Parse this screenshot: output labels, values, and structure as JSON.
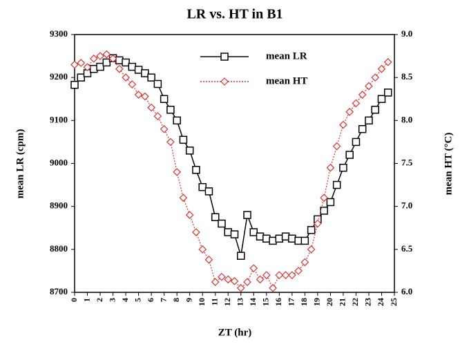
{
  "chart_data": {
    "type": "line",
    "title": "LR vs. HT in B1",
    "x_label": "ZT (hr)",
    "y_label": "mean LR (cpm)",
    "y2_label": "mean HT (°C)",
    "xlim": [
      0,
      25
    ],
    "xticks": [
      0,
      1,
      2,
      3,
      4,
      5,
      6,
      7,
      8,
      9,
      10,
      11,
      12,
      13,
      14,
      15,
      16,
      17,
      18,
      19,
      20,
      21,
      22,
      23,
      24,
      25
    ],
    "ylim": [
      8700,
      9300
    ],
    "yticks": [
      8700,
      8800,
      8900,
      9000,
      9100,
      9200,
      9300
    ],
    "y2lim": [
      6,
      9
    ],
    "y2ticks": [
      {
        "value": 6,
        "label": "6.0"
      },
      6.5,
      {
        "value": 7,
        "label": "7.0"
      },
      7.5,
      {
        "value": 8,
        "label": "8.0"
      },
      8.5,
      {
        "value": 9,
        "label": "9.0"
      }
    ],
    "legend": "top",
    "x": [
      0,
      0.5,
      1,
      1.5,
      2,
      2.5,
      3,
      3.5,
      4,
      4.5,
      5,
      5.5,
      6,
      6.5,
      7,
      7.5,
      8,
      8.5,
      9,
      9.5,
      10,
      10.5,
      11,
      11.5,
      12,
      12.5,
      13,
      13.5,
      14,
      14.5,
      15,
      15.5,
      16,
      16.5,
      17,
      17.5,
      18,
      18.5,
      19,
      19.5,
      20,
      20.5,
      21,
      21.5,
      22,
      22.5,
      23,
      23.5,
      24,
      24.5
    ],
    "series": [
      {
        "name": "mean LR",
        "color": "#000000",
        "marker": "square",
        "dash": false,
        "values": [
          9183,
          9200,
          9210,
          9220,
          9225,
          9235,
          9245,
          9240,
          9235,
          9225,
          9218,
          9210,
          9200,
          9185,
          9150,
          9125,
          9100,
          9055,
          9030,
          8985,
          8945,
          8935,
          8875,
          8860,
          8840,
          8835,
          8785,
          8880,
          8840,
          8830,
          8825,
          8820,
          8825,
          8830,
          8825,
          8820,
          8820,
          8845,
          8870,
          8890,
          8910,
          8950,
          8990,
          9020,
          9050,
          9080,
          9100,
          9125,
          9150,
          9165
        ]
      },
      {
        "name": "mean HT",
        "color": "#e03030",
        "marker": "diamond",
        "dash": true,
        "axis": "y2",
        "values": [
          8.65,
          8.67,
          8.62,
          8.72,
          8.75,
          8.77,
          8.72,
          8.6,
          8.5,
          8.42,
          8.3,
          8.28,
          8.15,
          8.05,
          7.9,
          7.75,
          7.4,
          7.1,
          6.9,
          6.7,
          6.5,
          6.38,
          6.12,
          6.18,
          6.15,
          6.13,
          6.05,
          6.12,
          6.28,
          6.15,
          6.2,
          6.05,
          6.2,
          6.2,
          6.2,
          6.25,
          6.35,
          6.5,
          6.8,
          7.1,
          7.45,
          7.7,
          7.95,
          8.1,
          8.2,
          8.3,
          8.4,
          8.5,
          8.6,
          8.68
        ]
      }
    ]
  }
}
